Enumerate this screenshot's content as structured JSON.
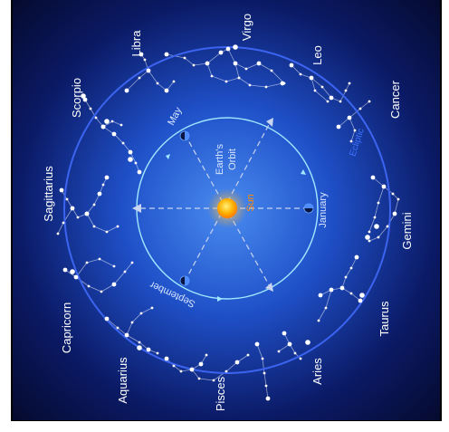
{
  "colors": {
    "sky_center": "#3d7fe6",
    "sky_edge": "#050a2e",
    "ecliptic": "#3b64f0",
    "orbit": "#9fe8ff",
    "sun": "#ff9a00",
    "sun_label": "#ff8c00",
    "ecliptic_label": "#3f73ff",
    "star": "#ffffff"
  },
  "labels": {
    "sun": "Sun",
    "earth_orbit_line1": "Earth's",
    "earth_orbit_line2": "Orbit",
    "ecliptic": "Ecliptic"
  },
  "months": {
    "may": "May",
    "january": "January",
    "september": "September"
  },
  "zodiac": {
    "virgo": "Virgo",
    "libra": "Libra",
    "leo": "Leo",
    "scorpio": "Scorpio",
    "cancer": "Cancer",
    "sagittarius": "Sagittarius",
    "gemini": "Gemini",
    "capricorn": "Capricorn",
    "taurus": "Taurus",
    "aquarius": "Aquarius",
    "aries": "Aries",
    "pisces": "Pisces"
  },
  "icons": {
    "sun": "sun-icon",
    "earth": "earth-icon"
  }
}
